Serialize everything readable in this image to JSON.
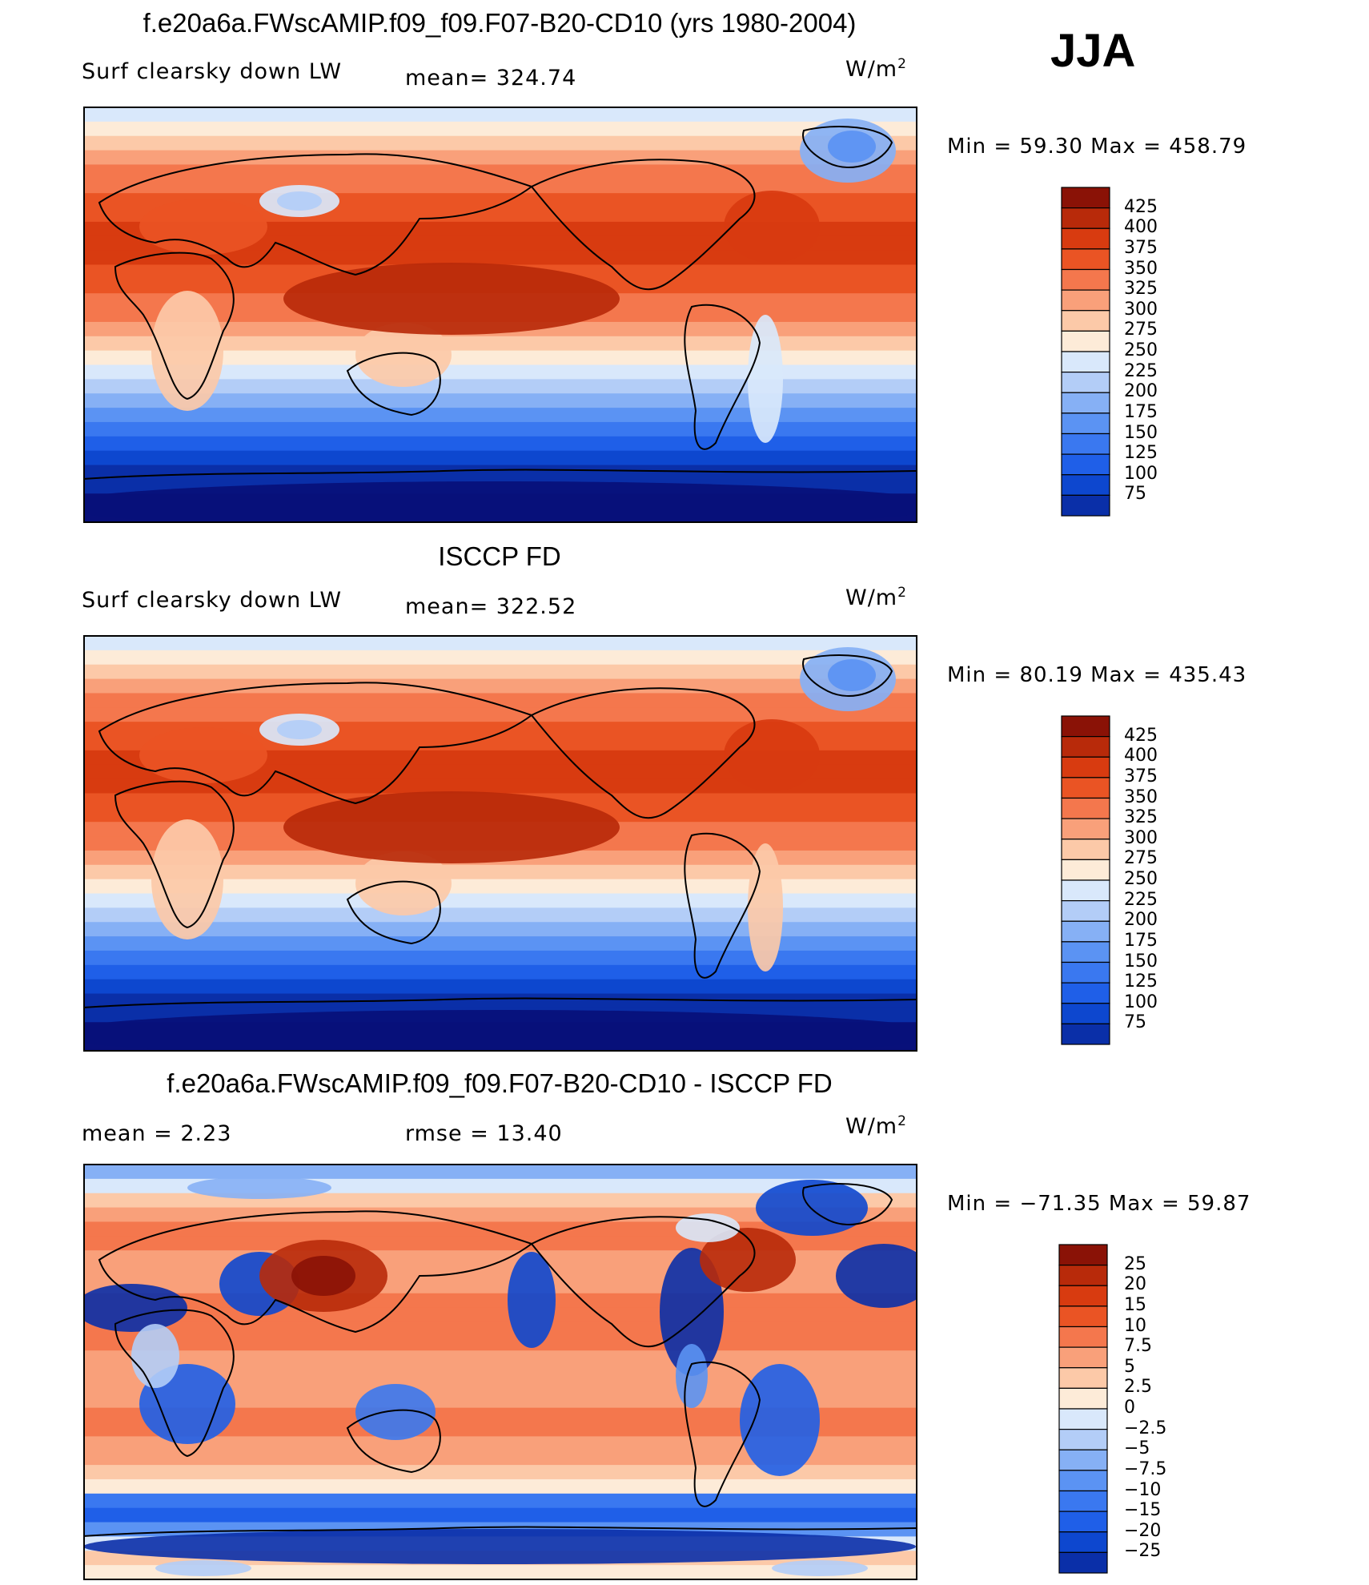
{
  "season": "JJA",
  "units": "W/m",
  "units_sup": "2",
  "panels": [
    {
      "title": "f.e20a6a.FWscAMIP.f09_f09.F07-B20-CD10 (yrs 1980-2004)",
      "left_label": "Surf clearsky down LW",
      "stat_label": "mean=  324.74",
      "minmax": "Min =   59.30  Max  =  458.79"
    },
    {
      "title": "ISCCP FD",
      "left_label": "Surf clearsky down LW",
      "stat_label": "mean=  322.52",
      "minmax": "Min =   80.19  Max  =  435.43"
    },
    {
      "title": "f.e20a6a.FWscAMIP.f09_f09.F07-B20-CD10 - ISCCP FD",
      "left_label": "mean  =     2.23",
      "stat_label": "rmse  =    13.40",
      "minmax": "Min = −71.35  Max =   59.87"
    }
  ],
  "chart_data": [
    {
      "type": "heatmap",
      "title": "f.e20a6a.FWscAMIP.f09_f09.F07-B20-CD10 (yrs 1980-2004)",
      "variable": "Surf clearsky down LW",
      "mean": 324.74,
      "min": 59.3,
      "max": 458.79,
      "units": "W/m2",
      "levels": [
        75,
        100,
        125,
        150,
        175,
        200,
        225,
        250,
        275,
        300,
        325,
        350,
        375,
        400,
        425
      ],
      "level_labels": [
        "425",
        "400",
        "375",
        "350",
        "325",
        "300",
        "275",
        "250",
        "225",
        "200",
        "175",
        "150",
        "125",
        "100",
        "75"
      ]
    },
    {
      "type": "heatmap",
      "title": "ISCCP FD",
      "variable": "Surf clearsky down LW",
      "mean": 322.52,
      "min": 80.19,
      "max": 435.43,
      "units": "W/m2",
      "levels": [
        75,
        100,
        125,
        150,
        175,
        200,
        225,
        250,
        275,
        300,
        325,
        350,
        375,
        400,
        425
      ],
      "level_labels": [
        "425",
        "400",
        "375",
        "350",
        "325",
        "300",
        "275",
        "250",
        "225",
        "200",
        "175",
        "150",
        "125",
        "100",
        "75"
      ]
    },
    {
      "type": "heatmap",
      "title": "f.e20a6a.FWscAMIP.f09_f09.F07-B20-CD10 - ISCCP FD",
      "mean": 2.23,
      "rmse": 13.4,
      "min": -71.35,
      "max": 59.87,
      "units": "W/m2",
      "levels": [
        -25,
        -20,
        -15,
        -10,
        -7.5,
        -5,
        -2.5,
        0,
        2.5,
        5,
        7.5,
        10,
        15,
        20,
        25
      ],
      "level_labels": [
        "25",
        "20",
        "15",
        "10",
        "7.5",
        "5",
        "2.5",
        "0",
        "−2.5",
        "−5",
        "−7.5",
        "−10",
        "−15",
        "−20",
        "−25"
      ]
    }
  ],
  "colors": {
    "palette": [
      "#08107a",
      "#0a2fa8",
      "#0d47cf",
      "#1f5fe8",
      "#3a78f0",
      "#5b93f3",
      "#86b0f5",
      "#b3cdf7",
      "#d9e8fb",
      "#fdebd8",
      "#fcc9a8",
      "#f9a07a",
      "#f4774d",
      "#ea5424",
      "#d83b10",
      "#b82a0a",
      "#8a1206"
    ]
  }
}
